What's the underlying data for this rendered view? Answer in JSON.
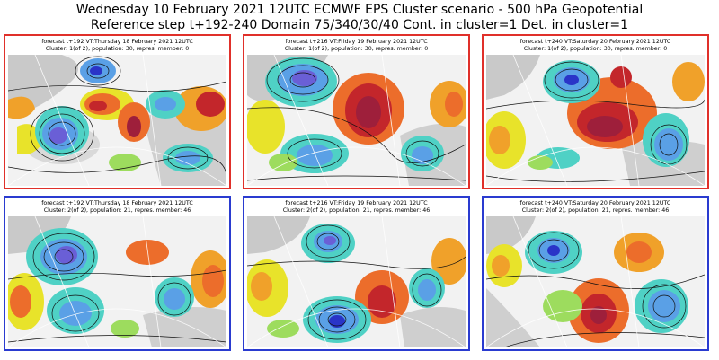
{
  "header": {
    "line1": "Wednesday 10 February 2021 12UTC ECMWF EPS Cluster scenario - 500 hPa Geopotential",
    "line2": "Reference step t+192-240 Domain 75/340/30/40 Cont. in cluster=1 Det. in cluster=1"
  },
  "colors": {
    "cluster1_border": "#e0302a",
    "cluster2_border": "#2a3bd0"
  },
  "panels": [
    {
      "caption1": "forecast t+192 VT:Thursday 18 February 2021 12UTC",
      "caption2": "Cluster: 1(of 2), population: 30, repres. member: 0"
    },
    {
      "caption1": "forecast t+216 VT:Friday 19 February 2021 12UTC",
      "caption2": "Cluster: 1(of 2), population: 30, repres. member: 0"
    },
    {
      "caption1": "forecast t+240 VT:Saturday 20 February 2021 12UTC",
      "caption2": "Cluster: 1(of 2), population: 30, repres. member: 0"
    },
    {
      "caption1": "forecast t+192 VT:Thursday 18 February 2021 12UTC",
      "caption2": "Cluster: 2(of 2), population: 21, repres. member: 46"
    },
    {
      "caption1": "forecast t+216 VT:Friday 19 February 2021 12UTC",
      "caption2": "Cluster: 2(of 2), population: 21, repres. member: 46"
    },
    {
      "caption1": "forecast t+240 VT:Saturday 20 February 2021 12UTC",
      "caption2": "Cluster: 2(of 2), population: 21, repres. member: 46"
    }
  ]
}
